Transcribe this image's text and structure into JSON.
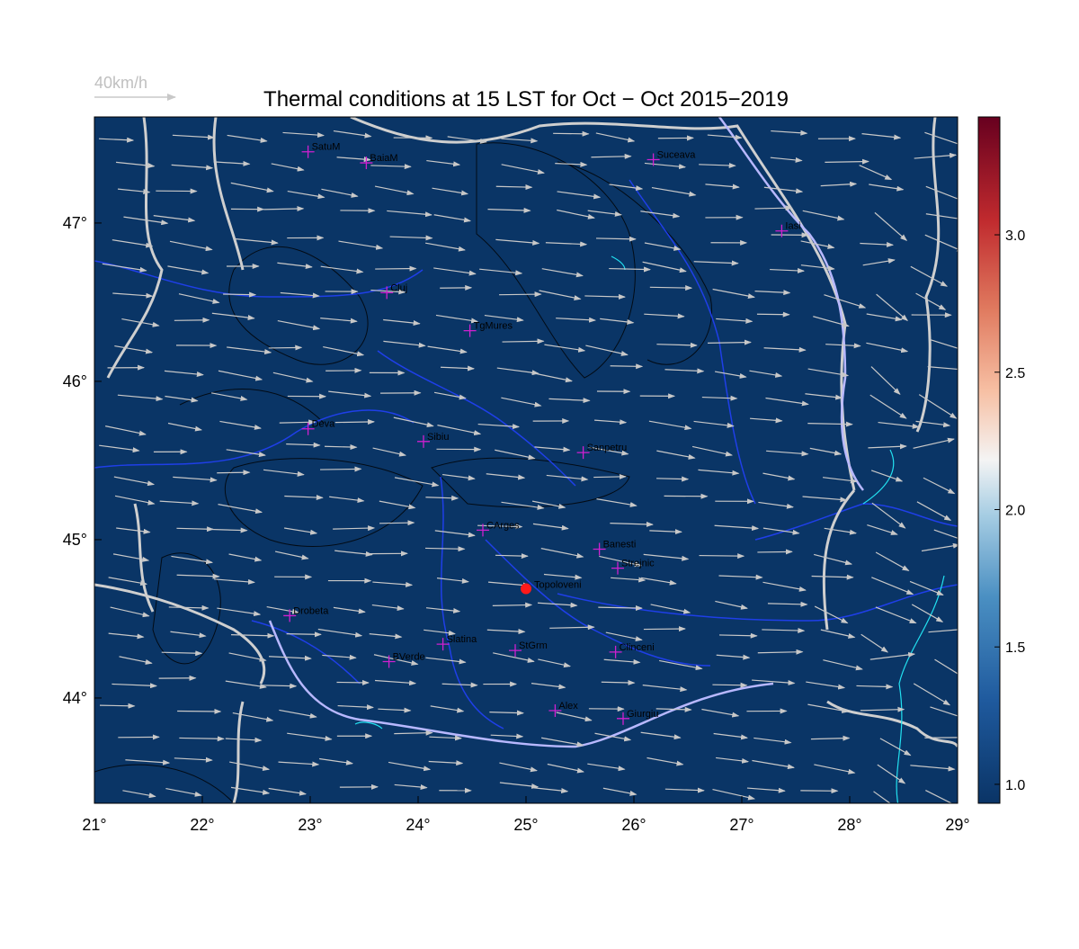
{
  "title": "Thermal conditions at 15 LST for Oct − Oct  2015−2019",
  "wind_scale_label": "40km/h",
  "xlim": [
    21,
    29
  ],
  "ylim": [
    43.335,
    47.67
  ],
  "lon_ticks": [
    {
      "value": 21,
      "label": "21°"
    },
    {
      "value": 22,
      "label": "22°"
    },
    {
      "value": 23,
      "label": "23°"
    },
    {
      "value": 24,
      "label": "24°"
    },
    {
      "value": 25,
      "label": "25°"
    },
    {
      "value": 26,
      "label": "26°"
    },
    {
      "value": 27,
      "label": "27°"
    },
    {
      "value": 28,
      "label": "28°"
    },
    {
      "value": 29,
      "label": "29°"
    }
  ],
  "lat_ticks": [
    {
      "value": 44,
      "label": "44°"
    },
    {
      "value": 45,
      "label": "45°"
    },
    {
      "value": 46,
      "label": "46°"
    },
    {
      "value": 47,
      "label": "47°"
    }
  ],
  "colorbar": {
    "clim": [
      0.931,
      3.429
    ],
    "ticks": [
      1.0,
      1.5,
      2.0,
      2.5,
      3.0
    ],
    "tick_labels": [
      "1.0",
      "1.5",
      "2.0",
      "2.5",
      "3.0"
    ]
  },
  "cities": [
    {
      "name": "SatuM",
      "lon": 22.98,
      "lat": 47.45
    },
    {
      "name": "BaiaM",
      "lon": 23.52,
      "lat": 47.38
    },
    {
      "name": "Suceava",
      "lon": 26.18,
      "lat": 47.4
    },
    {
      "name": "Iasi",
      "lon": 27.37,
      "lat": 46.95
    },
    {
      "name": "Cluj",
      "lon": 23.71,
      "lat": 46.56
    },
    {
      "name": "TgMures",
      "lon": 24.48,
      "lat": 46.32
    },
    {
      "name": "Deva",
      "lon": 22.98,
      "lat": 45.7
    },
    {
      "name": "Sibiu",
      "lon": 24.05,
      "lat": 45.62
    },
    {
      "name": "Sanpetru",
      "lon": 25.53,
      "lat": 45.55
    },
    {
      "name": "CArges",
      "lon": 24.6,
      "lat": 45.06
    },
    {
      "name": "Banesti",
      "lon": 25.68,
      "lat": 44.94
    },
    {
      "name": "Strejnic",
      "lon": 25.85,
      "lat": 44.82
    },
    {
      "name": "Drobeta",
      "lon": 22.81,
      "lat": 44.52
    },
    {
      "name": "Slatina",
      "lon": 24.23,
      "lat": 44.34
    },
    {
      "name": "StGrm",
      "lon": 24.9,
      "lat": 44.3
    },
    {
      "name": "Clinceni",
      "lon": 25.83,
      "lat": 44.29
    },
    {
      "name": "BVerde",
      "lon": 23.73,
      "lat": 44.23
    },
    {
      "name": "Alex",
      "lon": 25.27,
      "lat": 43.92
    },
    {
      "name": "Giurgiu",
      "lon": 25.9,
      "lat": 43.87
    }
  ],
  "site": {
    "name": "Topoloveni",
    "lon": 25.0,
    "lat": 44.69
  }
}
